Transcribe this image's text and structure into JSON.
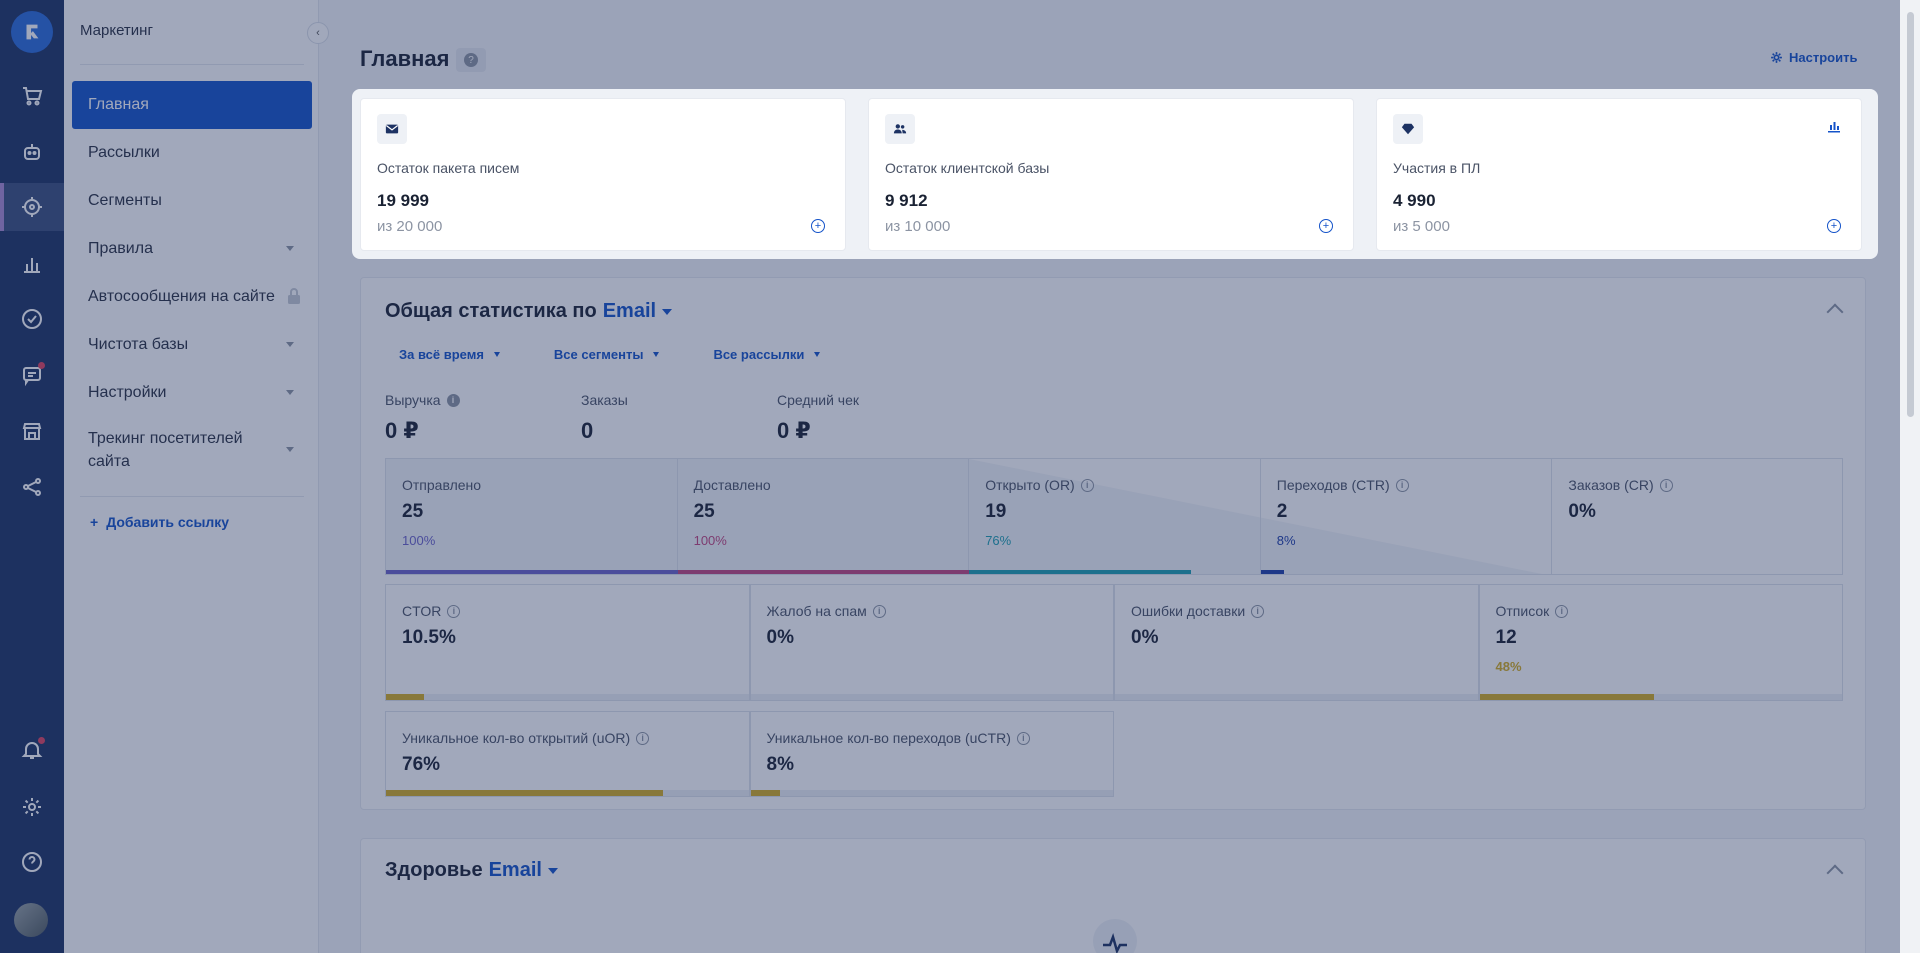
{
  "sidebar": {
    "title": "Маркетинг",
    "items": [
      {
        "label": "Главная"
      },
      {
        "label": "Рассылки"
      },
      {
        "label": "Сегменты"
      },
      {
        "label": "Правила"
      },
      {
        "label": "Автосообщения на сайте"
      },
      {
        "label": "Чистота базы"
      },
      {
        "label": "Настройки"
      },
      {
        "label": "Трекинг посетителей сайта"
      }
    ],
    "add_link": "Добавить ссылку"
  },
  "rail_icons": [
    "logo-icon",
    "cart-icon",
    "bot-icon",
    "target-icon",
    "chart-icon",
    "check-circle-icon",
    "chat-icon",
    "store-icon",
    "share-icon",
    "bell-icon",
    "gear-icon",
    "help-icon",
    "avatar"
  ],
  "header": {
    "title": "Главная",
    "config_label": "Настроить"
  },
  "cards": [
    {
      "label": "Остаток пакета писем",
      "value": "19 999",
      "of": "из 20 000"
    },
    {
      "label": "Остаток клиентской базы",
      "value": "9 912",
      "of": "из 10 000"
    },
    {
      "label": "Участия в ПЛ",
      "value": "4 990",
      "of": "из 5 000"
    }
  ],
  "stats": {
    "title": "Общая статистика по",
    "channel": "Email",
    "filters": [
      "За всё время",
      "Все сегменты",
      "Все рассылки"
    ],
    "kpis": [
      {
        "label": "Выручка",
        "value": "0 ₽"
      },
      {
        "label": "Заказы",
        "value": "0"
      },
      {
        "label": "Средний чек",
        "value": "0 ₽"
      }
    ],
    "funnel": [
      {
        "label": "Отправлено",
        "value": "25",
        "pct": "100%",
        "color": "#6b63c9",
        "fill": 1.0
      },
      {
        "label": "Доставлено",
        "value": "25",
        "pct": "100%",
        "color": "#c2467e",
        "fill": 1.0
      },
      {
        "label": "Открыто (OR)",
        "value": "19",
        "pct": "76%",
        "color": "#1d9fb0",
        "fill": 0.76
      },
      {
        "label": "Переходов (CTR)",
        "value": "2",
        "pct": "8%",
        "color": "#1e3ea8",
        "fill": 0.08
      },
      {
        "label": "Заказов (CR)",
        "value": "0%",
        "pct": "",
        "color": "#1e3ea8",
        "fill": 0
      }
    ],
    "metrics": [
      {
        "label": "CTOR",
        "value": "10.5%",
        "pct": "",
        "fill": 0.105
      },
      {
        "label": "Жалоб на спам",
        "value": "0%",
        "pct": "",
        "fill": 0
      },
      {
        "label": "Ошибки доставки",
        "value": "0%",
        "pct": "",
        "fill": 0
      },
      {
        "label": "Отписок",
        "value": "12",
        "pct": "48%",
        "fill": 0.48
      },
      {
        "label": "Уникальное кол-во открытий (uOR)",
        "value": "76%",
        "pct": "",
        "fill": 0.76
      },
      {
        "label": "Уникальное кол-во переходов (uCTR)",
        "value": "8%",
        "pct": "",
        "fill": 0.08
      }
    ],
    "metric_color": "#d4ad22"
  },
  "health": {
    "title": "Здоровье",
    "channel": "Email"
  }
}
